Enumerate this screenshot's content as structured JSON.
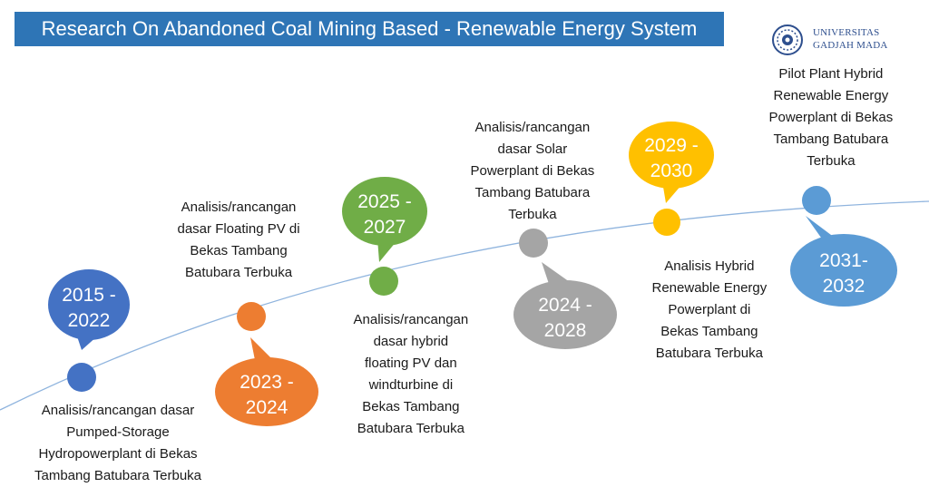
{
  "title": "Research On Abandoned Coal Mining Based - Renewable Energy System",
  "logo": {
    "line1": "UNIVERSITAS",
    "line2": "GADJAH MADA"
  },
  "milestones": [
    {
      "id": "m1",
      "period_line1": "2015 -",
      "period_line2": "2022",
      "color": "#4472C4",
      "description": [
        "Analisis/rancangan dasar",
        "Pumped-Storage",
        "Hydropowerplant di Bekas",
        "Tambang Batubara Terbuka"
      ]
    },
    {
      "id": "m2",
      "period_line1": "2023 -",
      "period_line2": "2024",
      "color": "#ED7D31",
      "description": [
        "Analisis/rancangan",
        "dasar Floating PV di",
        "Bekas Tambang",
        "Batubara Terbuka"
      ]
    },
    {
      "id": "m3",
      "period_line1": "2025 -",
      "period_line2": "2027",
      "color": "#70AD47",
      "description": [
        "Analisis/rancangan",
        "dasar hybrid",
        "floating PV dan",
        "windturbine di",
        "Bekas Tambang",
        "Batubara Terbuka"
      ]
    },
    {
      "id": "m4",
      "period_line1": "2024 -",
      "period_line2": "2028",
      "color": "#A5A5A5",
      "description": [
        "Analisis/rancangan",
        "dasar Solar",
        "Powerplant di Bekas",
        "Tambang Batubara",
        "Terbuka"
      ]
    },
    {
      "id": "m5",
      "period_line1": "2029 -",
      "period_line2": "2030",
      "color": "#FFC000",
      "description": [
        "Analisis Hybrid",
        "Renewable Energy",
        "Powerplant di",
        "Bekas Tambang",
        "Batubara Terbuka"
      ]
    },
    {
      "id": "m6",
      "period_line1": "2031-",
      "period_line2": "2032",
      "color": "#5B9BD5",
      "description": [
        "Pilot Plant Hybrid",
        "Renewable Energy",
        "Powerplant di Bekas",
        "Tambang Batubara",
        "Terbuka"
      ]
    }
  ],
  "timeline_color": "#8FB4DE"
}
